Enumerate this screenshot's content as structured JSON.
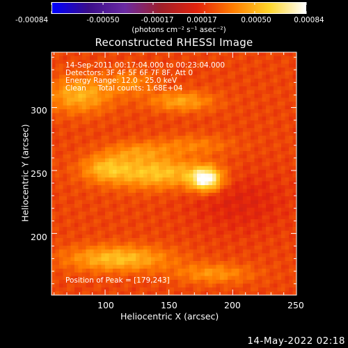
{
  "colorbar": {
    "tick_labels": [
      "-0.00084",
      "-0.00050",
      "-0.00017",
      "0.00017",
      "0.00050",
      "0.00084"
    ],
    "tick_values": [
      -0.00084,
      -0.0005,
      -0.00017,
      0.00017,
      0.0005,
      0.00084
    ],
    "range": [
      -0.00084,
      0.00084
    ],
    "units": "(photons cm⁻² s⁻¹ asec⁻²)"
  },
  "chart_data": {
    "type": "heatmap",
    "title": "Reconstructed RHESSI Image",
    "xlabel": "Heliocentric X (arcsec)",
    "ylabel": "Heliocentric Y (arcsec)",
    "xlim": [
      58,
      250
    ],
    "ylim": [
      151,
      344
    ],
    "xticks": [
      100,
      150,
      200,
      250
    ],
    "yticks": [
      200,
      250,
      300
    ],
    "colormap": [
      "#0000ff",
      "#3a0d8a",
      "#6a2aa3",
      "#9f1f2a",
      "#e2230c",
      "#ff7d00",
      "#ffd52a",
      "#ffffff"
    ],
    "peak": [
      179,
      243
    ],
    "annotations": [
      "14-Sep-2011 00:17:04.000 to 00:23:04.000",
      "Detectors: 3F 4F 5F 6F 7F 8F, Att 0",
      "Energy Range: 12.0 - 25.0 keV",
      "Clean     Total counts: 1.68E+04"
    ],
    "peak_label": "Position of Peak = [179,243]"
  },
  "footer": "14-May-2022 02:18"
}
